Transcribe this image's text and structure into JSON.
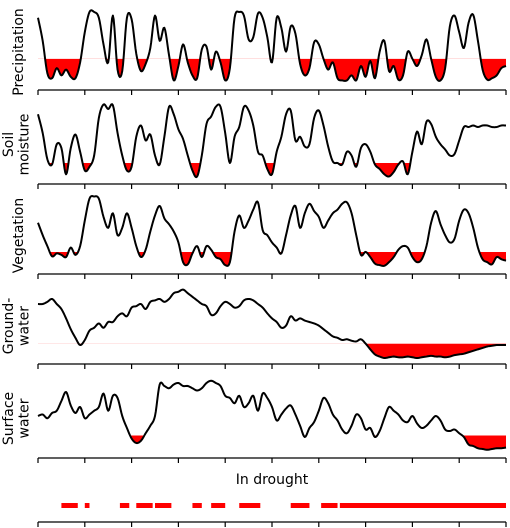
{
  "chart_data": {
    "type": "line",
    "x_domain": [
      0,
      100
    ],
    "x_ticks": [
      0,
      10,
      20,
      30,
      40,
      50,
      60,
      70,
      80,
      90,
      100
    ],
    "panels": [
      {
        "name": "precipitation",
        "label_lines": [
          "Precipitation"
        ],
        "threshold": 0.35,
        "values": [
          0.92,
          0.6,
          0.15,
          0.08,
          0.22,
          0.12,
          0.2,
          0.1,
          0.08,
          0.3,
          0.72,
          1.0,
          1.0,
          0.92,
          0.55,
          0.3,
          0.95,
          0.2,
          0.18,
          0.92,
          0.9,
          0.42,
          0.18,
          0.28,
          0.5,
          0.95,
          0.6,
          0.78,
          0.4,
          0.05,
          0.25,
          0.55,
          0.3,
          0.12,
          0.08,
          0.48,
          0.52,
          0.2,
          0.45,
          0.3,
          0.05,
          0.22,
          0.92,
          1.0,
          0.95,
          0.62,
          0.65,
          0.98,
          0.92,
          0.65,
          0.3,
          0.92,
          0.78,
          0.45,
          0.8,
          0.7,
          0.28,
          0.12,
          0.22,
          0.58,
          0.55,
          0.35,
          0.2,
          0.3,
          0.08,
          0.05,
          0.05,
          0.12,
          0.05,
          0.25,
          0.1,
          0.32,
          0.08,
          0.45,
          0.6,
          0.18,
          0.25,
          0.06,
          0.12,
          0.45,
          0.35,
          0.25,
          0.4,
          0.62,
          0.35,
          0.1,
          0.05,
          0.22,
          0.8,
          0.95,
          0.72,
          0.5,
          0.85,
          0.96,
          0.6,
          0.2,
          0.06,
          0.08,
          0.12,
          0.22,
          0.25
        ]
      },
      {
        "name": "soil-moisture",
        "label_lines": [
          "Soil",
          "moisture"
        ],
        "threshold": 0.2,
        "values": [
          0.85,
          0.6,
          0.25,
          0.18,
          0.45,
          0.4,
          0.05,
          0.4,
          0.58,
          0.35,
          0.1,
          0.15,
          0.3,
          0.8,
          0.98,
          0.92,
          0.97,
          0.6,
          0.3,
          0.1,
          0.15,
          0.55,
          0.7,
          0.5,
          0.58,
          0.3,
          0.18,
          0.55,
          0.95,
          0.85,
          0.65,
          0.52,
          0.3,
          0.1,
          0.02,
          0.3,
          0.72,
          0.82,
          0.95,
          0.95,
          0.6,
          0.2,
          0.55,
          0.68,
          0.95,
          0.9,
          0.7,
          0.35,
          0.3,
          0.12,
          0.05,
          0.35,
          0.55,
          0.85,
          0.9,
          0.5,
          0.55,
          0.42,
          0.45,
          0.8,
          0.9,
          0.7,
          0.42,
          0.22,
          0.2,
          0.18,
          0.35,
          0.3,
          0.15,
          0.4,
          0.45,
          0.35,
          0.18,
          0.12,
          0.05,
          0.02,
          0.08,
          0.18,
          0.22,
          0.05,
          0.35,
          0.62,
          0.45,
          0.75,
          0.72,
          0.55,
          0.45,
          0.38,
          0.3,
          0.32,
          0.5,
          0.68,
          0.68,
          0.7,
          0.68,
          0.7,
          0.7,
          0.68,
          0.68,
          0.7,
          0.7
        ]
      },
      {
        "name": "vegetation",
        "label_lines": [
          "Vegetation"
        ],
        "threshold": 0.22,
        "values": [
          0.62,
          0.45,
          0.3,
          0.16,
          0.2,
          0.18,
          0.15,
          0.28,
          0.18,
          0.3,
          0.65,
          0.95,
          0.98,
          0.95,
          0.7,
          0.55,
          0.75,
          0.45,
          0.55,
          0.75,
          0.55,
          0.3,
          0.15,
          0.25,
          0.5,
          0.72,
          0.85,
          0.68,
          0.6,
          0.5,
          0.35,
          0.08,
          0.05,
          0.2,
          0.3,
          0.15,
          0.3,
          0.25,
          0.15,
          0.12,
          0.04,
          0.08,
          0.5,
          0.72,
          0.55,
          0.65,
          0.8,
          0.9,
          0.52,
          0.45,
          0.35,
          0.28,
          0.2,
          0.45,
          0.72,
          0.85,
          0.55,
          0.75,
          0.88,
          0.78,
          0.7,
          0.55,
          0.65,
          0.75,
          0.8,
          0.88,
          0.9,
          0.75,
          0.45,
          0.18,
          0.22,
          0.15,
          0.06,
          0.04,
          0.03,
          0.08,
          0.15,
          0.25,
          0.3,
          0.28,
          0.15,
          0.08,
          0.12,
          0.3,
          0.62,
          0.78,
          0.6,
          0.45,
          0.35,
          0.4,
          0.65,
          0.8,
          0.75,
          0.55,
          0.28,
          0.12,
          0.08,
          0.05,
          0.15,
          0.12,
          0.1
        ]
      },
      {
        "name": "groundwater",
        "label_lines": [
          "Ground-",
          "water"
        ],
        "threshold": 0.2,
        "values": [
          0.75,
          0.75,
          0.78,
          0.82,
          0.75,
          0.68,
          0.55,
          0.4,
          0.28,
          0.18,
          0.25,
          0.38,
          0.42,
          0.48,
          0.42,
          0.5,
          0.5,
          0.58,
          0.62,
          0.58,
          0.7,
          0.72,
          0.75,
          0.68,
          0.78,
          0.8,
          0.82,
          0.78,
          0.82,
          0.9,
          0.92,
          0.95,
          0.9,
          0.85,
          0.8,
          0.75,
          0.72,
          0.6,
          0.62,
          0.72,
          0.78,
          0.75,
          0.7,
          0.72,
          0.8,
          0.82,
          0.8,
          0.75,
          0.7,
          0.62,
          0.55,
          0.5,
          0.42,
          0.45,
          0.58,
          0.52,
          0.55,
          0.52,
          0.5,
          0.48,
          0.45,
          0.4,
          0.35,
          0.3,
          0.28,
          0.25,
          0.26,
          0.24,
          0.23,
          0.26,
          0.2,
          0.12,
          0.05,
          0.02,
          0.0,
          0.01,
          0.02,
          0.01,
          0.01,
          0.02,
          0.01,
          0.0,
          0.01,
          0.02,
          0.03,
          0.02,
          0.02,
          0.01,
          0.02,
          0.04,
          0.05,
          0.06,
          0.08,
          0.1,
          0.12,
          0.14,
          0.16,
          0.17,
          0.18,
          0.18,
          0.18
        ]
      },
      {
        "name": "surface-water",
        "label_lines": [
          "Surface",
          "water"
        ],
        "threshold": 0.22,
        "values": [
          0.48,
          0.5,
          0.45,
          0.52,
          0.55,
          0.68,
          0.8,
          0.62,
          0.52,
          0.6,
          0.45,
          0.5,
          0.55,
          0.6,
          0.78,
          0.55,
          0.75,
          0.72,
          0.48,
          0.32,
          0.18,
          0.12,
          0.15,
          0.25,
          0.35,
          0.48,
          0.9,
          0.88,
          0.85,
          0.9,
          0.92,
          0.88,
          0.88,
          0.85,
          0.82,
          0.85,
          0.92,
          0.95,
          0.92,
          0.88,
          0.75,
          0.72,
          0.65,
          0.75,
          0.6,
          0.65,
          0.75,
          0.55,
          0.78,
          0.72,
          0.6,
          0.42,
          0.5,
          0.58,
          0.62,
          0.5,
          0.35,
          0.2,
          0.32,
          0.4,
          0.55,
          0.72,
          0.65,
          0.5,
          0.42,
          0.3,
          0.25,
          0.35,
          0.5,
          0.45,
          0.3,
          0.32,
          0.2,
          0.28,
          0.45,
          0.6,
          0.55,
          0.5,
          0.42,
          0.4,
          0.48,
          0.38,
          0.32,
          0.35,
          0.42,
          0.48,
          0.42,
          0.3,
          0.28,
          0.3,
          0.25,
          0.2,
          0.1,
          0.08,
          0.05,
          0.04,
          0.03,
          0.04,
          0.05,
          0.05,
          0.06
        ]
      }
    ],
    "drought_title": "In drought",
    "drought_periods": [
      [
        5,
        8.5
      ],
      [
        10,
        11
      ],
      [
        17.5,
        19.5
      ],
      [
        21,
        24.5
      ],
      [
        25,
        28.5
      ],
      [
        33,
        35
      ],
      [
        37,
        40
      ],
      [
        43,
        47.5
      ],
      [
        54,
        58
      ],
      [
        60.5,
        64
      ],
      [
        64.5,
        100
      ]
    ],
    "colors": {
      "line": "#000000",
      "deficit": "#ff0000",
      "drought": "#ff0000"
    }
  }
}
